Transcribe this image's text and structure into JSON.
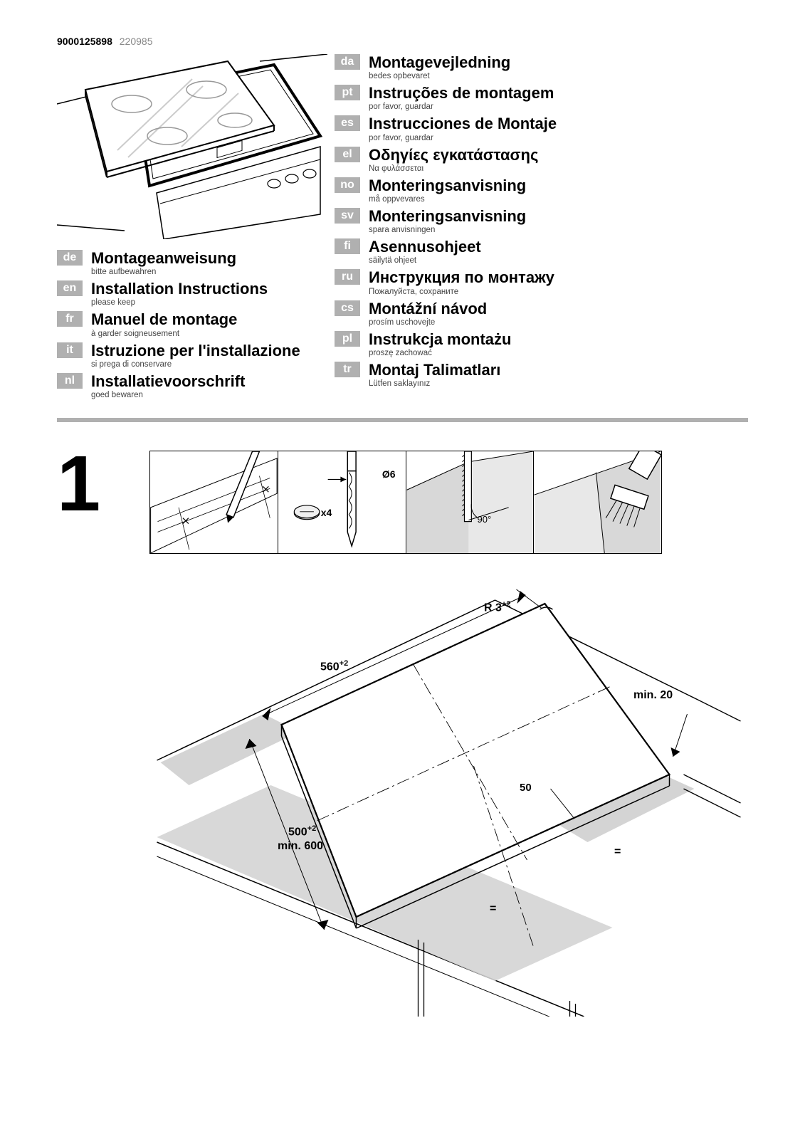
{
  "doc_id_bold": "9000125898",
  "doc_id_gray": "220985",
  "left_langs": [
    {
      "code": "de",
      "title": "Montageanweisung",
      "sub": "bitte aufbewahren"
    },
    {
      "code": "en",
      "title": "Installation Instructions",
      "sub": "please keep"
    },
    {
      "code": "fr",
      "title": "Manuel de montage",
      "sub": "à garder soigneusement"
    },
    {
      "code": "it",
      "title": "Istruzione per l'installazione",
      "sub": "si prega di conservare"
    },
    {
      "code": "nl",
      "title": "Installatievoorschrift",
      "sub": "goed bewaren"
    }
  ],
  "right_langs": [
    {
      "code": "da",
      "title": "Montagevejledning",
      "sub": "bedes opbevaret"
    },
    {
      "code": "pt",
      "title": "Instruções de montagem",
      "sub": "por favor, guardar"
    },
    {
      "code": "es",
      "title": "Instrucciones de Montaje",
      "sub": "por favor, guardar"
    },
    {
      "code": "el",
      "title": "Οδηγίες  εγκατάστασης",
      "sub": "Να φυλάσσεται"
    },
    {
      "code": "no",
      "title": "Monteringsanvisning",
      "sub": "må oppvevares"
    },
    {
      "code": "sv",
      "title": "Monteringsanvisning",
      "sub": "spara anvisningen"
    },
    {
      "code": "fi",
      "title": "Asennusohjeet",
      "sub": "säilytä ohjeet"
    },
    {
      "code": "ru",
      "title": "Инструкция  по  монтажу",
      "sub": "Пожалуйста, сохраните"
    },
    {
      "code": "cs",
      "title": "Montážní návod",
      "sub": "prosím uschovejte"
    },
    {
      "code": "pl",
      "title": "Instrukcja montażu",
      "sub": "proszę zachować"
    },
    {
      "code": "tr",
      "title": "Montaj  Talimatları",
      "sub": "Lütfen saklayınız"
    }
  ],
  "step_number": "1",
  "panel_labels": {
    "drill_size": "Ø6",
    "screw_count": "x4",
    "angle": "90°"
  },
  "dimensions": {
    "width": "560",
    "width_tol": "+2",
    "depth": "500",
    "depth_tol": "+2",
    "min_depth_label": "min. 600",
    "radius": "R 3",
    "radius_tol": "+2",
    "clearance": "min. 20",
    "front_gap": "50",
    "equal1": "=",
    "equal2": "="
  },
  "colors": {
    "badge_bg": "#b0b0b0",
    "badge_fg": "#ffffff",
    "divider": "#b0b0b0",
    "countertop_band": "#c8c8c8",
    "line": "#000000"
  }
}
